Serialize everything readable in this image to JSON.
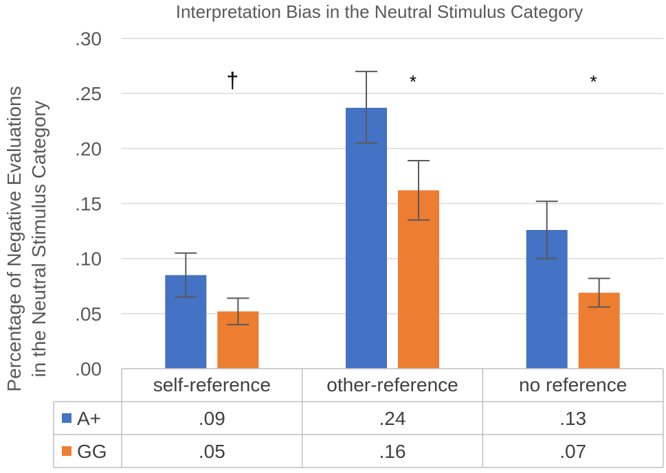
{
  "chart_data": {
    "type": "bar",
    "title": "Interpretation Bias in the Neutral Stimulus Category",
    "ylabel_lines": [
      "Percentage of Negative Evaluations",
      "in the Neutral Stimulus Category"
    ],
    "xlabel": "",
    "ylim": [
      0,
      0.3
    ],
    "ytick_values": [
      0,
      0.05,
      0.1,
      0.15,
      0.2,
      0.25,
      0.3
    ],
    "ytick_labels": [
      ".00",
      ".05",
      ".10",
      ".15",
      ".20",
      ".25",
      ".30"
    ],
    "categories": [
      "self-reference",
      "other-reference",
      "no reference"
    ],
    "significance": [
      "†",
      "*",
      "*"
    ],
    "grid": true,
    "legend": "data-table",
    "series": [
      {
        "name": "A+",
        "color": "#4472C4",
        "values": [
          0.085,
          0.237,
          0.126
        ],
        "err_low": [
          0.065,
          0.205,
          0.1
        ],
        "err_high": [
          0.105,
          0.27,
          0.152
        ],
        "table_labels": [
          ".09",
          ".24",
          ".13"
        ]
      },
      {
        "name": "GG",
        "color": "#ED7D31",
        "values": [
          0.052,
          0.162,
          0.069
        ],
        "err_low": [
          0.04,
          0.135,
          0.056
        ],
        "err_high": [
          0.064,
          0.189,
          0.082
        ],
        "table_labels": [
          ".05",
          ".16",
          ".07"
        ]
      }
    ]
  }
}
